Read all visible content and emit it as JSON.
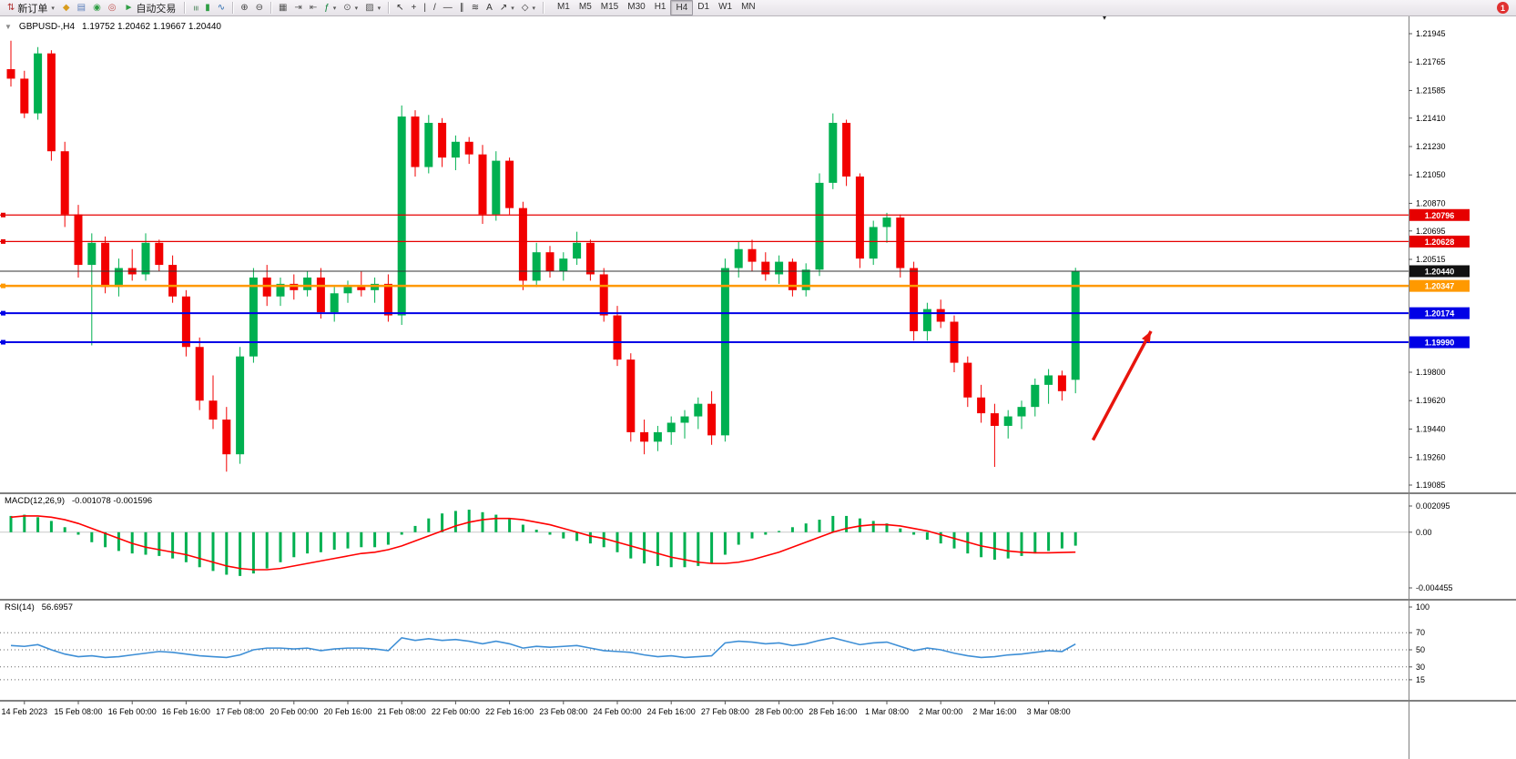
{
  "header": {
    "collapse_icon": "▼",
    "symbol_period": "GBPUSD-,H4",
    "ohlc": "1.19752 1.20462 1.19667 1.20440",
    "scroll_marker": "▾"
  },
  "toolbar": {
    "caret_glyph": "▾",
    "groups": [
      {
        "type": "button",
        "name": "new-order-button",
        "icon": {
          "name": "new-order-icon",
          "glyph": "⇅",
          "color": "#b03030"
        },
        "label": "新订单",
        "caret": true
      },
      {
        "type": "icons",
        "items": [
          {
            "name": "market-watch-icon",
            "glyph": "◆",
            "color": "#d89c1e"
          },
          {
            "name": "data-window-icon",
            "glyph": "▤",
            "color": "#5b7fbb"
          },
          {
            "name": "navigator-icon",
            "glyph": "◉",
            "color": "#2f9e44"
          },
          {
            "name": "strategy-tester-icon",
            "glyph": "◎",
            "color": "#c0504d"
          }
        ]
      },
      {
        "type": "button",
        "name": "auto-trading-button",
        "icon": {
          "name": "play-icon",
          "glyph": "►",
          "color": "#2f9e44"
        },
        "label": "自动交易"
      },
      {
        "type": "sep"
      },
      {
        "type": "icons",
        "items": [
          {
            "name": "bar-chart-icon",
            "glyph": "≡",
            "color": "#3a7a4a",
            "rot": true
          },
          {
            "name": "candlestick-chart-icon",
            "glyph": "▮",
            "color": "#2f9e44"
          },
          {
            "name": "line-chart-icon",
            "glyph": "∿",
            "color": "#2b6cb0"
          }
        ]
      },
      {
        "type": "sep"
      },
      {
        "type": "icons",
        "items": [
          {
            "name": "zoom-in-icon",
            "glyph": "⊕",
            "color": "#444444"
          },
          {
            "name": "zoom-out-icon",
            "glyph": "⊖",
            "color": "#444444"
          }
        ]
      },
      {
        "type": "sep"
      },
      {
        "type": "icons",
        "items": [
          {
            "name": "tile-windows-icon",
            "glyph": "▦",
            "color": "#555555"
          },
          {
            "name": "auto-scroll-icon",
            "glyph": "⇥",
            "color": "#555555"
          },
          {
            "name": "chart-shift-icon",
            "glyph": "⇤",
            "color": "#555555"
          },
          {
            "name": "indicators-icon",
            "glyph": "ƒ",
            "color": "#0a7d36",
            "caret": true
          },
          {
            "name": "periods-icon",
            "glyph": "⊙",
            "color": "#555555",
            "caret": true
          },
          {
            "name": "templates-icon",
            "glyph": "▨",
            "color": "#555555",
            "caret": true
          }
        ]
      },
      {
        "type": "sep"
      },
      {
        "type": "icons",
        "items": [
          {
            "name": "cursor-icon",
            "glyph": "↖",
            "color": "#333333"
          },
          {
            "name": "crosshair-icon",
            "glyph": "+",
            "color": "#333333"
          },
          {
            "name": "vertical-line-icon",
            "glyph": "|",
            "color": "#333333"
          },
          {
            "name": "trendline-icon",
            "glyph": "/",
            "color": "#333333"
          },
          {
            "name": "horizontal-line-icon",
            "glyph": "—",
            "color": "#333333"
          },
          {
            "name": "channel-icon",
            "glyph": "∥",
            "color": "#333333"
          },
          {
            "name": "fibonacci-icon",
            "glyph": "≋",
            "color": "#333333"
          },
          {
            "name": "text-icon",
            "glyph": "A",
            "color": "#333333"
          },
          {
            "name": "arrows-icon",
            "glyph": "↗",
            "color": "#333333",
            "caret": true
          },
          {
            "name": "shapes-icon",
            "glyph": "◇",
            "color": "#333333",
            "caret": true
          }
        ]
      },
      {
        "type": "sep"
      },
      {
        "type": "timeframes",
        "items": [
          "M1",
          "M5",
          "M15",
          "M30",
          "H1",
          "H4",
          "D1",
          "W1",
          "MN"
        ],
        "active": "H4"
      },
      {
        "type": "spacer"
      },
      {
        "type": "badge",
        "name": "notification-icon",
        "label": "1",
        "color": "#e03131"
      }
    ]
  },
  "chart_data": {
    "type": "candlestick",
    "symbol": "GBPUSD-",
    "timeframe": "H4",
    "title": "GBPUSD-,H4",
    "ohlc_display": {
      "open": "1.19752",
      "high": "1.20462",
      "low": "1.19667",
      "close": "1.20440"
    },
    "colors": {
      "up": "#00B050",
      "down": "#F20000",
      "macd_hist": "#00B050",
      "macd_signal": "#FF0000",
      "rsi": "#3E8FD6",
      "price_line": "#333333",
      "price_badge": "#111111"
    },
    "price_axis": {
      "min": 1.19085,
      "max": 1.21945,
      "ticks": [
        1.21945,
        1.21765,
        1.21585,
        1.2141,
        1.2123,
        1.2105,
        1.2087,
        1.20695,
        1.20515,
        1.198,
        1.1962,
        1.1944,
        1.1926,
        1.19085
      ]
    },
    "time_labels": [
      "14 Feb 2023",
      "15 Feb 08:00",
      "16 Feb 00:00",
      "16 Feb 16:00",
      "17 Feb 08:00",
      "20 Feb 00:00",
      "20 Feb 16:00",
      "21 Feb 08:00",
      "22 Feb 00:00",
      "22 Feb 16:00",
      "23 Feb 08:00",
      "24 Feb 00:00",
      "24 Feb 16:00",
      "27 Feb 08:00",
      "28 Feb 00:00",
      "28 Feb 16:00",
      "1 Mar 08:00",
      "2 Mar 00:00",
      "2 Mar 16:00",
      "3 Mar 08:00"
    ],
    "candles": [
      [
        1.2172,
        1.219,
        1.2161,
        1.2166
      ],
      [
        1.2166,
        1.2171,
        1.2141,
        1.2144
      ],
      [
        1.2144,
        1.2186,
        1.214,
        1.2182
      ],
      [
        1.2182,
        1.2184,
        1.2114,
        1.212
      ],
      [
        1.212,
        1.2126,
        1.2072,
        1.208
      ],
      [
        1.208,
        1.2086,
        1.204,
        1.2048
      ],
      [
        1.2048,
        1.2068,
        1.1997,
        1.2062
      ],
      [
        1.2062,
        1.2066,
        1.203,
        1.2034
      ],
      [
        1.2034,
        1.2052,
        1.2028,
        1.2046
      ],
      [
        1.2046,
        1.2058,
        1.2038,
        1.2042
      ],
      [
        1.2042,
        1.2068,
        1.2038,
        1.2062
      ],
      [
        1.2062,
        1.2064,
        1.2044,
        1.2048
      ],
      [
        1.2048,
        1.2054,
        1.2024,
        1.2028
      ],
      [
        1.2028,
        1.2032,
        1.199,
        1.1996
      ],
      [
        1.1996,
        1.2002,
        1.1956,
        1.1962
      ],
      [
        1.1962,
        1.1978,
        1.1944,
        1.195
      ],
      [
        1.195,
        1.1958,
        1.1917,
        1.1928
      ],
      [
        1.1928,
        1.1996,
        1.1922,
        1.199
      ],
      [
        1.199,
        1.2046,
        1.1986,
        1.204
      ],
      [
        1.204,
        1.2048,
        1.2022,
        1.2028
      ],
      [
        1.2028,
        1.204,
        1.2022,
        1.2036
      ],
      [
        1.2036,
        1.2042,
        1.2026,
        1.2032
      ],
      [
        1.2032,
        1.2044,
        1.2028,
        1.204
      ],
      [
        1.204,
        1.2046,
        1.2014,
        1.2018
      ],
      [
        1.2018,
        1.2034,
        1.2012,
        1.203
      ],
      [
        1.203,
        1.2038,
        1.2024,
        1.2034
      ],
      [
        1.2034,
        1.2044,
        1.2028,
        1.2032
      ],
      [
        1.2032,
        1.204,
        1.2024,
        1.2036
      ],
      [
        1.2036,
        1.2042,
        1.2012,
        1.2016
      ],
      [
        1.2016,
        1.2149,
        1.201,
        1.2142
      ],
      [
        1.2142,
        1.2146,
        1.2104,
        1.211
      ],
      [
        1.211,
        1.2143,
        1.2106,
        1.2138
      ],
      [
        1.2138,
        1.2141,
        1.211,
        1.2116
      ],
      [
        1.2116,
        1.213,
        1.2108,
        1.2126
      ],
      [
        1.2126,
        1.2129,
        1.2112,
        1.2118
      ],
      [
        1.2118,
        1.2124,
        1.2074,
        1.208
      ],
      [
        1.208,
        1.212,
        1.2076,
        1.2114
      ],
      [
        1.2114,
        1.2116,
        1.208,
        1.2084
      ],
      [
        1.2084,
        1.2088,
        1.2032,
        1.2038
      ],
      [
        1.2038,
        1.2062,
        1.2034,
        1.2056
      ],
      [
        1.2056,
        1.206,
        1.204,
        1.2044
      ],
      [
        1.2044,
        1.2056,
        1.2038,
        1.2052
      ],
      [
        1.2052,
        1.2069,
        1.2048,
        1.2062
      ],
      [
        1.2062,
        1.2064,
        1.2038,
        1.2042
      ],
      [
        1.2042,
        1.2046,
        1.2012,
        1.2016
      ],
      [
        1.2016,
        1.2022,
        1.1984,
        1.1988
      ],
      [
        1.1988,
        1.1992,
        1.1936,
        1.1942
      ],
      [
        1.1942,
        1.195,
        1.1928,
        1.1936
      ],
      [
        1.1936,
        1.1946,
        1.193,
        1.1942
      ],
      [
        1.1942,
        1.1952,
        1.1934,
        1.1948
      ],
      [
        1.1948,
        1.1956,
        1.1938,
        1.1952
      ],
      [
        1.1952,
        1.1964,
        1.1944,
        1.196
      ],
      [
        1.196,
        1.1968,
        1.1934,
        1.194
      ],
      [
        1.194,
        1.2052,
        1.1936,
        1.2046
      ],
      [
        1.2046,
        1.2063,
        1.204,
        1.2058
      ],
      [
        1.2058,
        1.2064,
        1.2044,
        1.205
      ],
      [
        1.205,
        1.2056,
        1.2038,
        1.2042
      ],
      [
        1.2042,
        1.2054,
        1.2036,
        1.205
      ],
      [
        1.205,
        1.2052,
        1.2028,
        1.2032
      ],
      [
        1.2032,
        1.2049,
        1.2028,
        1.2045
      ],
      [
        1.2045,
        1.2106,
        1.2041,
        1.21
      ],
      [
        1.21,
        1.2144,
        1.2096,
        1.2138
      ],
      [
        1.2138,
        1.214,
        1.2098,
        1.2104
      ],
      [
        1.2104,
        1.2106,
        1.2046,
        1.2052
      ],
      [
        1.2052,
        1.2076,
        1.2048,
        1.2072
      ],
      [
        1.2072,
        1.2081,
        1.2062,
        1.2078
      ],
      [
        1.2078,
        1.208,
        1.204,
        1.2046
      ],
      [
        1.2046,
        1.205,
        1.2,
        1.2006
      ],
      [
        1.2006,
        1.2024,
        1.2,
        1.202
      ],
      [
        1.202,
        1.2026,
        1.2008,
        1.2012
      ],
      [
        1.2012,
        1.2016,
        1.198,
        1.1986
      ],
      [
        1.1986,
        1.199,
        1.1958,
        1.1964
      ],
      [
        1.1964,
        1.1972,
        1.1948,
        1.1954
      ],
      [
        1.1954,
        1.196,
        1.192,
        1.1946
      ],
      [
        1.1946,
        1.1956,
        1.1938,
        1.1952
      ],
      [
        1.1952,
        1.1962,
        1.1944,
        1.1958
      ],
      [
        1.1958,
        1.1976,
        1.1952,
        1.1972
      ],
      [
        1.1972,
        1.1982,
        1.196,
        1.1978
      ],
      [
        1.1978,
        1.1981,
        1.1962,
        1.1968
      ],
      [
        1.19752,
        1.20462,
        1.19667,
        1.2044
      ]
    ],
    "hlines": [
      {
        "price": 1.20796,
        "label": "1.20796",
        "color": "#E60000",
        "width": 1.2
      },
      {
        "price": 1.20628,
        "label": "1.20628",
        "color": "#E60000",
        "width": 1.2
      },
      {
        "price": 1.2044,
        "label": "1.20440",
        "color": "#333333",
        "badge": "#111111",
        "width": 1,
        "is_price": true
      },
      {
        "price": 1.20347,
        "label": "1.20347",
        "color": "#FF9900",
        "width": 2.4
      },
      {
        "price": 1.20174,
        "label": "1.20174",
        "color": "#0000E6",
        "width": 2
      },
      {
        "price": 1.1999,
        "label": "1.19990",
        "color": "#0000E6",
        "width": 2
      }
    ],
    "arrow": {
      "from_bar": 80.3,
      "from_price": 1.1937,
      "to_bar": 84.6,
      "to_price": 1.2006,
      "color": "#E8150D",
      "width": 3.5
    },
    "indicators": {
      "macd": {
        "label": "MACD(12,26,9)",
        "values_text": "-0.001078 -0.001596",
        "scale_max": 0.002095,
        "scale_min": -0.004455,
        "axis_labels": [
          "0.002095",
          "0.00",
          "-0.004455"
        ],
        "histogram": [
          0.0013,
          0.0014,
          0.0012,
          0.0009,
          0.0004,
          -0.0002,
          -0.0008,
          -0.0012,
          -0.0015,
          -0.0017,
          -0.0018,
          -0.0019,
          -0.0021,
          -0.0024,
          -0.0028,
          -0.0031,
          -0.0034,
          -0.0035,
          -0.0033,
          -0.0029,
          -0.0024,
          -0.002,
          -0.0017,
          -0.0016,
          -0.0014,
          -0.0013,
          -0.0012,
          -0.0012,
          -0.001,
          -0.0002,
          0.0005,
          0.0011,
          0.0015,
          0.0017,
          0.0018,
          0.0016,
          0.0014,
          0.0011,
          0.0006,
          0.0002,
          -0.0002,
          -0.0005,
          -0.0007,
          -0.0009,
          -0.0012,
          -0.0016,
          -0.0021,
          -0.0025,
          -0.0027,
          -0.0028,
          -0.0028,
          -0.0027,
          -0.0025,
          -0.0018,
          -0.001,
          -0.0005,
          -0.0002,
          0.0001,
          0.0004,
          0.0007,
          0.001,
          0.0013,
          0.0013,
          0.0011,
          0.0009,
          0.0007,
          0.0003,
          -0.0002,
          -0.0006,
          -0.0009,
          -0.0013,
          -0.0017,
          -0.002,
          -0.0022,
          -0.0021,
          -0.0019,
          -0.0017,
          -0.0015,
          -0.0013,
          -0.001078
        ],
        "signal": [
          0.0012,
          0.0013,
          0.0013,
          0.0012,
          0.001,
          0.0007,
          0.0003,
          -0.0001,
          -0.0005,
          -0.0009,
          -0.0012,
          -0.0014,
          -0.0016,
          -0.0018,
          -0.0021,
          -0.0024,
          -0.0027,
          -0.0029,
          -0.003,
          -0.003,
          -0.0029,
          -0.0027,
          -0.0025,
          -0.0023,
          -0.0021,
          -0.0019,
          -0.0017,
          -0.0016,
          -0.0014,
          -0.0011,
          -0.0007,
          -0.0003,
          0.0001,
          0.0005,
          0.0008,
          0.001,
          0.0011,
          0.0011,
          0.001,
          0.0008,
          0.0006,
          0.0003,
          0.0,
          -0.0003,
          -0.0005,
          -0.0008,
          -0.0011,
          -0.0014,
          -0.0017,
          -0.002,
          -0.0022,
          -0.0024,
          -0.0025,
          -0.0025,
          -0.0024,
          -0.0022,
          -0.0019,
          -0.0016,
          -0.0012,
          -0.0008,
          -0.0004,
          0.0,
          0.0003,
          0.0005,
          0.0006,
          0.0006,
          0.0005,
          0.0003,
          0.0001,
          -0.0002,
          -0.0005,
          -0.0008,
          -0.0011,
          -0.0013,
          -0.0015,
          -0.0016,
          -0.00165,
          -0.00165,
          -0.00162,
          -0.001596
        ]
      },
      "rsi": {
        "label": "RSI(14)",
        "value_text": "56.6957",
        "scale_max": 100,
        "scale_min": 0,
        "levels": [
          70,
          50,
          30,
          15
        ],
        "axis_labels": [
          100,
          70,
          50,
          30,
          15
        ],
        "values": [
          55,
          54,
          56,
          50,
          45,
          42,
          43,
          41,
          42,
          44,
          46,
          48,
          47,
          45,
          43,
          42,
          41,
          44,
          50,
          52,
          52,
          51,
          52,
          49,
          51,
          52,
          52,
          51,
          49,
          64,
          61,
          63,
          61,
          62,
          60,
          57,
          60,
          57,
          52,
          54,
          53,
          54,
          55,
          52,
          49,
          48,
          47,
          44,
          42,
          43,
          41,
          42,
          43,
          58,
          60,
          59,
          57,
          58,
          55,
          57,
          61,
          64,
          60,
          56,
          58,
          59,
          54,
          49,
          52,
          50,
          46,
          43,
          41,
          42,
          44,
          45,
          47,
          49,
          48,
          56.6957
        ]
      }
    }
  }
}
